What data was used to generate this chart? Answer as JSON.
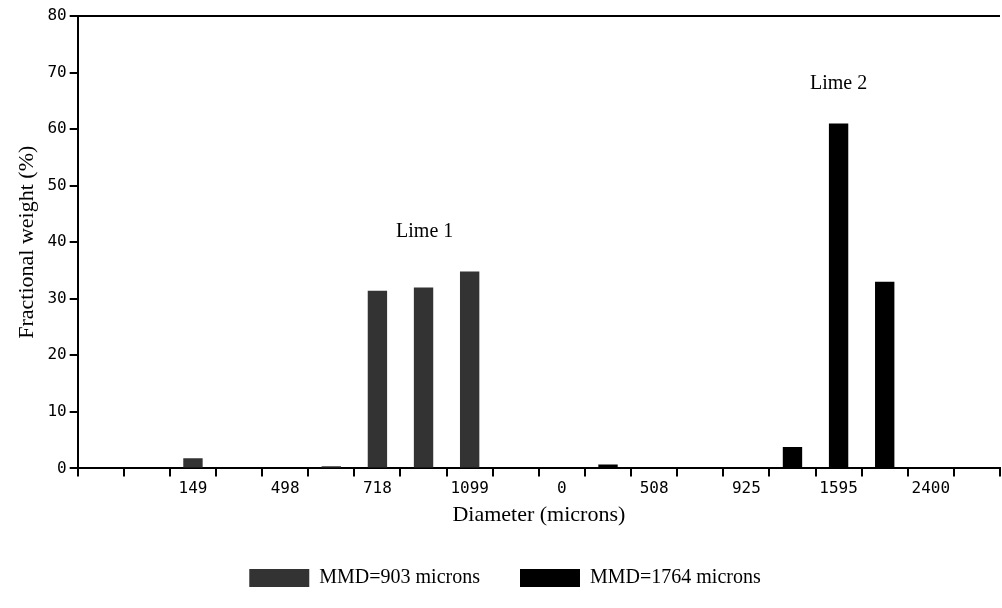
{
  "chart_data": {
    "type": "bar",
    "xlabel": "Diameter (microns)",
    "ylabel": "Fractional weight (%)",
    "categories": [
      null,
      null,
      "149",
      null,
      "498",
      null,
      "718",
      null,
      "1099",
      null,
      "0",
      null,
      "508",
      null,
      "925",
      null,
      "1595",
      null,
      "2400",
      null
    ],
    "series": [
      {
        "name": "MMD=903 microns",
        "color": "#333333",
        "values": [
          null,
          null,
          1.8,
          null,
          null,
          0.4,
          31.4,
          32,
          34.8,
          null,
          null,
          null,
          null,
          null,
          null,
          null,
          null,
          null,
          null,
          null
        ]
      },
      {
        "name": "MMD=1764 microns",
        "color": "#000000",
        "values": [
          null,
          null,
          null,
          null,
          null,
          null,
          null,
          null,
          null,
          null,
          null,
          0.7,
          null,
          null,
          null,
          3.8,
          61,
          33,
          null,
          null
        ]
      }
    ],
    "annotations": [
      "Lime 1",
      "Lime 2"
    ],
    "ylim": [
      0,
      80
    ],
    "yticks": [
      0,
      10,
      20,
      30,
      40,
      50,
      60,
      70,
      80
    ],
    "grid": false,
    "legend": "bottom"
  }
}
